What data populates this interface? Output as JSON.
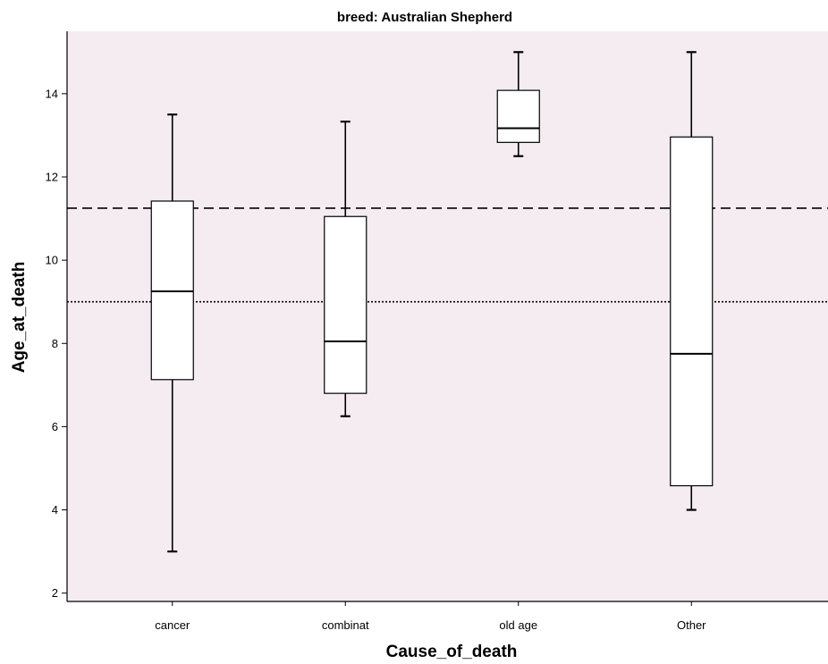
{
  "chart_data": {
    "type": "boxplot",
    "title": "breed: Australian Shepherd",
    "xlabel": "Cause_of_death",
    "ylabel": "Age_at_death",
    "categories": [
      "cancer",
      "combinat",
      "old age",
      "Other"
    ],
    "boxes": [
      {
        "category": "cancer",
        "min": 3.0,
        "q1": 7.13,
        "median": 9.25,
        "q3": 11.42,
        "max": 13.5
      },
      {
        "category": "combinat",
        "min": 6.25,
        "q1": 6.8,
        "median": 8.05,
        "q3": 11.05,
        "max": 13.33
      },
      {
        "category": "old age",
        "min": 12.5,
        "q1": 12.83,
        "median": 13.17,
        "q3": 14.08,
        "max": 15.0
      },
      {
        "category": "Other",
        "min": 4.0,
        "q1": 4.58,
        "median": 7.75,
        "q3": 12.96,
        "max": 15.0
      }
    ],
    "reference_lines": [
      {
        "style": "dashed",
        "value": 11.25
      },
      {
        "style": "dotted",
        "value": 9.0
      }
    ],
    "yticks": [
      2,
      4,
      6,
      8,
      10,
      12,
      14
    ],
    "ylim": [
      1.8,
      15.5
    ],
    "grid": false,
    "colors": {
      "plot_background": "#f4ecf1",
      "box_fill": "#ffffff",
      "stroke": "#000000"
    }
  }
}
